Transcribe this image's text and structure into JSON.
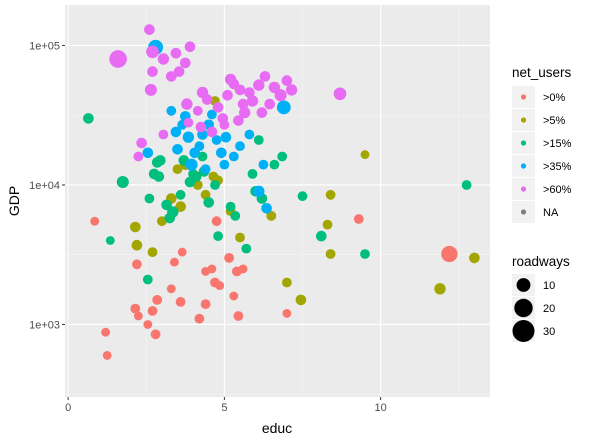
{
  "chart_data": {
    "type": "scatter",
    "xlabel": "educ",
    "ylabel": "GDP",
    "xlim": [
      -0.1,
      13.5
    ],
    "ylim_log10": [
      2.48,
      5.29
    ],
    "x_ticks": [
      {
        "value": 0,
        "label": "0"
      },
      {
        "value": 5,
        "label": "5"
      },
      {
        "value": 10,
        "label": "10"
      }
    ],
    "y_ticks": [
      {
        "value": 1000,
        "label": "1e+03"
      },
      {
        "value": 10000,
        "label": "1e+04"
      },
      {
        "value": 100000,
        "label": "1e+05"
      }
    ],
    "y_scale": "log10",
    "grid": true,
    "legend_position": "right",
    "color_legend": {
      "title": "net_users",
      "items": [
        {
          "label": ">0%",
          "color": "#F8766D"
        },
        {
          "label": ">5%",
          "color": "#A3A500"
        },
        {
          "label": ">15%",
          "color": "#00BF7D"
        },
        {
          "label": ">35%",
          "color": "#00B0F6"
        },
        {
          "label": ">60%",
          "color": "#E76BF3"
        },
        {
          "label": "NA",
          "color": "#7F7F7F"
        }
      ]
    },
    "size_legend": {
      "title": "roadways",
      "items": [
        {
          "label": "10",
          "size": 10
        },
        {
          "label": "20",
          "size": 20
        },
        {
          "label": "30",
          "size": 30
        }
      ]
    },
    "series": [
      {
        "name": ">0%",
        "color": "#F8766D",
        "points": [
          {
            "x": 0.85,
            "y": 5500,
            "size": 3
          },
          {
            "x": 1.25,
            "y": 600,
            "size": 3
          },
          {
            "x": 1.2,
            "y": 880,
            "size": 3
          },
          {
            "x": 2.2,
            "y": 2700,
            "size": 4
          },
          {
            "x": 2.15,
            "y": 1300,
            "size": 4
          },
          {
            "x": 2.25,
            "y": 1150,
            "size": 3
          },
          {
            "x": 2.55,
            "y": 1000,
            "size": 3
          },
          {
            "x": 2.7,
            "y": 1250,
            "size": 4
          },
          {
            "x": 2.85,
            "y": 1500,
            "size": 4
          },
          {
            "x": 2.8,
            "y": 850,
            "size": 4
          },
          {
            "x": 3.3,
            "y": 1800,
            "size": 3
          },
          {
            "x": 3.6,
            "y": 1450,
            "size": 4
          },
          {
            "x": 3.4,
            "y": 2800,
            "size": 3
          },
          {
            "x": 3.65,
            "y": 3300,
            "size": 3
          },
          {
            "x": 4.2,
            "y": 1100,
            "size": 4
          },
          {
            "x": 4.4,
            "y": 1400,
            "size": 4
          },
          {
            "x": 4.7,
            "y": 2000,
            "size": 4
          },
          {
            "x": 4.6,
            "y": 2500,
            "size": 3
          },
          {
            "x": 4.75,
            "y": 5500,
            "size": 4
          },
          {
            "x": 5.15,
            "y": 3000,
            "size": 4
          },
          {
            "x": 5.3,
            "y": 1600,
            "size": 3
          },
          {
            "x": 5.4,
            "y": 2400,
            "size": 4
          },
          {
            "x": 5.45,
            "y": 1150,
            "size": 4
          },
          {
            "x": 5.6,
            "y": 2500,
            "size": 3
          },
          {
            "x": 4.4,
            "y": 2400,
            "size": 3
          },
          {
            "x": 4.85,
            "y": 1900,
            "size": 3
          },
          {
            "x": 7.0,
            "y": 1200,
            "size": 3
          },
          {
            "x": 9.3,
            "y": 5700,
            "size": 4
          },
          {
            "x": 12.2,
            "y": 3200,
            "size": 15
          }
        ]
      },
      {
        "name": ">5%",
        "color": "#A3A500",
        "points": [
          {
            "x": 2.15,
            "y": 5000,
            "size": 5
          },
          {
            "x": 2.2,
            "y": 3700,
            "size": 5
          },
          {
            "x": 2.7,
            "y": 3300,
            "size": 4
          },
          {
            "x": 3.0,
            "y": 5500,
            "size": 4
          },
          {
            "x": 3.3,
            "y": 8000,
            "size": 5
          },
          {
            "x": 3.5,
            "y": 13000,
            "size": 4
          },
          {
            "x": 3.6,
            "y": 7000,
            "size": 5
          },
          {
            "x": 3.75,
            "y": 14000,
            "size": 5
          },
          {
            "x": 4.0,
            "y": 11000,
            "size": 4
          },
          {
            "x": 4.15,
            "y": 10000,
            "size": 4
          },
          {
            "x": 4.4,
            "y": 8500,
            "size": 4
          },
          {
            "x": 4.65,
            "y": 11500,
            "size": 4
          },
          {
            "x": 4.8,
            "y": 10800,
            "size": 4
          },
          {
            "x": 5.2,
            "y": 6500,
            "size": 4
          },
          {
            "x": 4.7,
            "y": 40000,
            "size": 4
          },
          {
            "x": 5.5,
            "y": 4200,
            "size": 4
          },
          {
            "x": 6.5,
            "y": 6000,
            "size": 4
          },
          {
            "x": 7.0,
            "y": 2000,
            "size": 4
          },
          {
            "x": 7.45,
            "y": 1500,
            "size": 5
          },
          {
            "x": 8.3,
            "y": 5200,
            "size": 4
          },
          {
            "x": 8.4,
            "y": 3200,
            "size": 4
          },
          {
            "x": 8.4,
            "y": 8500,
            "size": 4
          },
          {
            "x": 9.5,
            "y": 16500,
            "size": 3
          },
          {
            "x": 11.9,
            "y": 1800,
            "size": 6
          },
          {
            "x": 13.0,
            "y": 3000,
            "size": 5
          }
        ]
      },
      {
        "name": ">15%",
        "color": "#00BF7D",
        "points": [
          {
            "x": 0.65,
            "y": 30000,
            "size": 5
          },
          {
            "x": 1.35,
            "y": 4000,
            "size": 3
          },
          {
            "x": 1.75,
            "y": 10500,
            "size": 7
          },
          {
            "x": 2.55,
            "y": 2100,
            "size": 4
          },
          {
            "x": 2.6,
            "y": 8000,
            "size": 4
          },
          {
            "x": 2.75,
            "y": 12000,
            "size": 5
          },
          {
            "x": 2.85,
            "y": 14500,
            "size": 5
          },
          {
            "x": 2.9,
            "y": 11500,
            "size": 5
          },
          {
            "x": 2.95,
            "y": 15000,
            "size": 5
          },
          {
            "x": 3.15,
            "y": 7200,
            "size": 5
          },
          {
            "x": 3.25,
            "y": 5800,
            "size": 5
          },
          {
            "x": 3.35,
            "y": 6400,
            "size": 6
          },
          {
            "x": 3.6,
            "y": 8500,
            "size": 4
          },
          {
            "x": 3.7,
            "y": 15000,
            "size": 5
          },
          {
            "x": 3.9,
            "y": 10500,
            "size": 5
          },
          {
            "x": 4.0,
            "y": 12000,
            "size": 4
          },
          {
            "x": 4.1,
            "y": 11500,
            "size": 5
          },
          {
            "x": 4.35,
            "y": 12500,
            "size": 5
          },
          {
            "x": 4.5,
            "y": 7500,
            "size": 5
          },
          {
            "x": 4.7,
            "y": 10000,
            "size": 4
          },
          {
            "x": 4.8,
            "y": 4300,
            "size": 4
          },
          {
            "x": 5.2,
            "y": 7000,
            "size": 4
          },
          {
            "x": 5.35,
            "y": 6000,
            "size": 4
          },
          {
            "x": 5.7,
            "y": 3500,
            "size": 4
          },
          {
            "x": 6.0,
            "y": 9000,
            "size": 5
          },
          {
            "x": 6.2,
            "y": 8000,
            "size": 5
          },
          {
            "x": 6.6,
            "y": 14000,
            "size": 4
          },
          {
            "x": 6.85,
            "y": 16000,
            "size": 4
          },
          {
            "x": 7.5,
            "y": 8300,
            "size": 4
          },
          {
            "x": 8.1,
            "y": 4300,
            "size": 5
          },
          {
            "x": 9.5,
            "y": 3200,
            "size": 4
          },
          {
            "x": 12.75,
            "y": 10000,
            "size": 4
          },
          {
            "x": 6.1,
            "y": 21000,
            "size": 4
          },
          {
            "x": 5.9,
            "y": 12000,
            "size": 4
          },
          {
            "x": 4.3,
            "y": 16000,
            "size": 4
          }
        ]
      },
      {
        "name": ">35%",
        "color": "#00B0F6",
        "points": [
          {
            "x": 2.8,
            "y": 97000,
            "size": 12
          },
          {
            "x": 2.55,
            "y": 17000,
            "size": 5
          },
          {
            "x": 3.3,
            "y": 34000,
            "size": 4
          },
          {
            "x": 3.45,
            "y": 24000,
            "size": 5
          },
          {
            "x": 3.5,
            "y": 18000,
            "size": 5
          },
          {
            "x": 3.65,
            "y": 27000,
            "size": 4
          },
          {
            "x": 3.75,
            "y": 31000,
            "size": 5
          },
          {
            "x": 3.85,
            "y": 22000,
            "size": 6
          },
          {
            "x": 3.95,
            "y": 14000,
            "size": 7
          },
          {
            "x": 4.05,
            "y": 17000,
            "size": 5
          },
          {
            "x": 4.2,
            "y": 19000,
            "size": 4
          },
          {
            "x": 4.3,
            "y": 23000,
            "size": 5
          },
          {
            "x": 4.5,
            "y": 27000,
            "size": 5
          },
          {
            "x": 4.6,
            "y": 32000,
            "size": 4
          },
          {
            "x": 4.75,
            "y": 21000,
            "size": 4
          },
          {
            "x": 4.9,
            "y": 17000,
            "size": 5
          },
          {
            "x": 5.05,
            "y": 22000,
            "size": 5
          },
          {
            "x": 5.3,
            "y": 16000,
            "size": 4
          },
          {
            "x": 5.5,
            "y": 19000,
            "size": 4
          },
          {
            "x": 5.8,
            "y": 23000,
            "size": 4
          },
          {
            "x": 6.1,
            "y": 9000,
            "size": 6
          },
          {
            "x": 6.25,
            "y": 14000,
            "size": 4
          },
          {
            "x": 6.35,
            "y": 6800,
            "size": 5
          },
          {
            "x": 6.9,
            "y": 36000,
            "size": 10
          },
          {
            "x": 5.0,
            "y": 14000,
            "size": 4
          },
          {
            "x": 4.4,
            "y": 13000,
            "size": 4
          }
        ]
      },
      {
        "name": ">60%",
        "color": "#E76BF3",
        "points": [
          {
            "x": 1.6,
            "y": 80000,
            "size": 18
          },
          {
            "x": 2.6,
            "y": 130000,
            "size": 5
          },
          {
            "x": 2.7,
            "y": 90000,
            "size": 8
          },
          {
            "x": 2.65,
            "y": 48000,
            "size": 7
          },
          {
            "x": 2.7,
            "y": 65000,
            "size": 5
          },
          {
            "x": 3.05,
            "y": 80000,
            "size": 6
          },
          {
            "x": 3.3,
            "y": 60000,
            "size": 5
          },
          {
            "x": 3.45,
            "y": 88000,
            "size": 5
          },
          {
            "x": 3.55,
            "y": 65000,
            "size": 5
          },
          {
            "x": 3.75,
            "y": 75000,
            "size": 5
          },
          {
            "x": 3.9,
            "y": 98000,
            "size": 5
          },
          {
            "x": 3.8,
            "y": 38000,
            "size": 6
          },
          {
            "x": 4.3,
            "y": 46000,
            "size": 6
          },
          {
            "x": 4.45,
            "y": 41000,
            "size": 5
          },
          {
            "x": 4.8,
            "y": 36000,
            "size": 5
          },
          {
            "x": 4.95,
            "y": 30000,
            "size": 5
          },
          {
            "x": 5.1,
            "y": 44000,
            "size": 5
          },
          {
            "x": 5.2,
            "y": 57000,
            "size": 6
          },
          {
            "x": 5.3,
            "y": 53000,
            "size": 5
          },
          {
            "x": 5.5,
            "y": 48000,
            "size": 5
          },
          {
            "x": 5.6,
            "y": 38000,
            "size": 5
          },
          {
            "x": 5.65,
            "y": 33000,
            "size": 6
          },
          {
            "x": 5.8,
            "y": 46000,
            "size": 5
          },
          {
            "x": 5.9,
            "y": 40000,
            "size": 6
          },
          {
            "x": 6.1,
            "y": 52000,
            "size": 6
          },
          {
            "x": 6.2,
            "y": 33000,
            "size": 5
          },
          {
            "x": 6.3,
            "y": 60000,
            "size": 5
          },
          {
            "x": 6.45,
            "y": 38000,
            "size": 5
          },
          {
            "x": 6.6,
            "y": 50000,
            "size": 6
          },
          {
            "x": 6.8,
            "y": 44000,
            "size": 7
          },
          {
            "x": 7.0,
            "y": 56000,
            "size": 5
          },
          {
            "x": 7.15,
            "y": 48000,
            "size": 6
          },
          {
            "x": 8.7,
            "y": 45000,
            "size": 8
          },
          {
            "x": 2.35,
            "y": 20000,
            "size": 5
          },
          {
            "x": 2.25,
            "y": 16000,
            "size": 4
          },
          {
            "x": 3.05,
            "y": 23000,
            "size": 4
          },
          {
            "x": 3.85,
            "y": 28000,
            "size": 4
          },
          {
            "x": 4.25,
            "y": 26000,
            "size": 5
          },
          {
            "x": 4.6,
            "y": 24000,
            "size": 5
          },
          {
            "x": 5.0,
            "y": 27000,
            "size": 4
          },
          {
            "x": 5.45,
            "y": 29000,
            "size": 5
          },
          {
            "x": 4.15,
            "y": 34000,
            "size": 4
          }
        ]
      }
    ]
  }
}
